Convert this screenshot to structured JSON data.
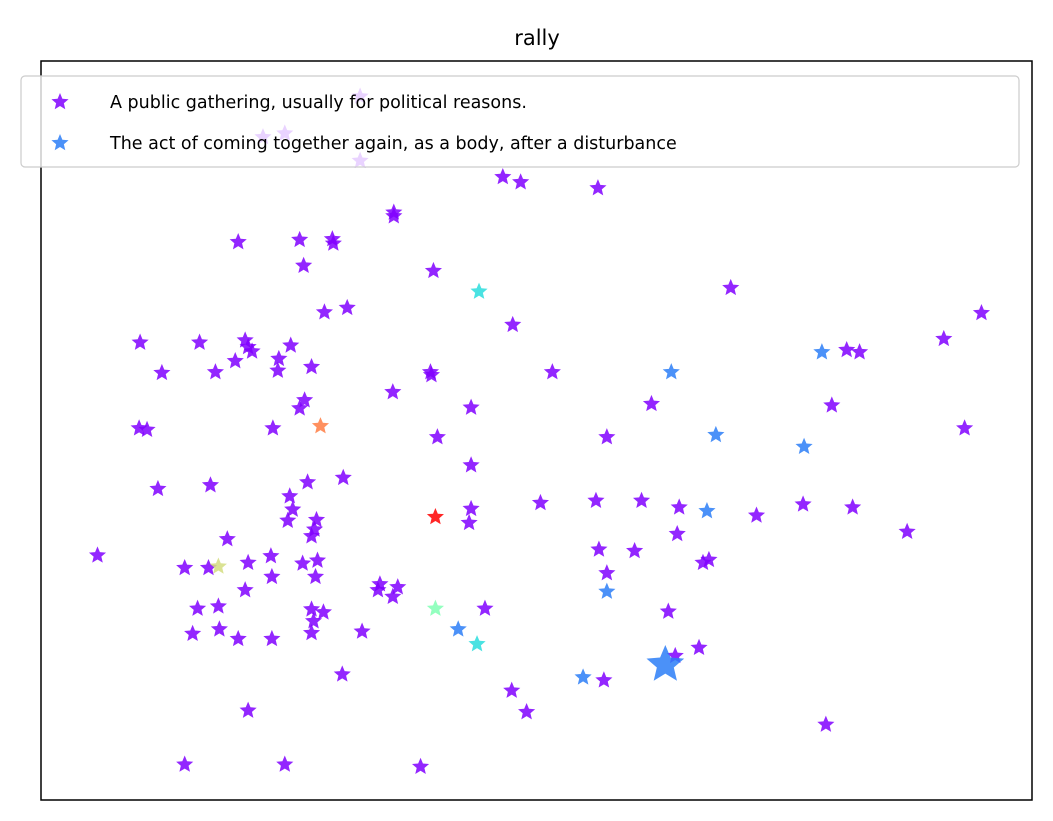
{
  "chart_data": {
    "type": "scatter",
    "title": "rally",
    "xlabel": "",
    "ylabel": "",
    "xlim": [
      0,
      100
    ],
    "ylim": [
      0,
      100
    ],
    "grid": false,
    "ticks": false,
    "marker": "star",
    "legend": {
      "placement": "top",
      "entries": [
        {
          "label": "A public gathering, usually for political reasons.",
          "color": "#8000ff"
        },
        {
          "label": "The act of coming together again, as a body, after a disturbance",
          "color": "#2c7ef7"
        }
      ]
    },
    "series": [
      {
        "name": "A public gathering, usually for political reasons.",
        "color": "#8000ff",
        "points": [
          [
            32.2,
            95.2
          ],
          [
            32.2,
            86.5
          ],
          [
            24.6,
            90.2
          ],
          [
            22.4,
            89.7
          ],
          [
            46.6,
            84.3
          ],
          [
            48.4,
            83.6
          ],
          [
            56.2,
            82.8
          ],
          [
            35.6,
            79.0
          ],
          [
            35.6,
            79.5
          ],
          [
            19.9,
            75.5
          ],
          [
            26.1,
            75.8
          ],
          [
            29.4,
            75.9
          ],
          [
            29.5,
            75.3
          ],
          [
            26.5,
            72.3
          ],
          [
            39.6,
            71.6
          ],
          [
            69.6,
            69.3
          ],
          [
            30.9,
            66.6
          ],
          [
            28.6,
            66.0
          ],
          [
            47.6,
            64.3
          ],
          [
            94.9,
            65.9
          ],
          [
            10.0,
            61.9
          ],
          [
            16.0,
            61.9
          ],
          [
            20.6,
            62.2
          ],
          [
            20.9,
            61.3
          ],
          [
            21.3,
            60.7
          ],
          [
            25.2,
            61.5
          ],
          [
            12.2,
            57.8
          ],
          [
            17.6,
            57.9
          ],
          [
            19.6,
            59.4
          ],
          [
            24.0,
            59.7
          ],
          [
            23.9,
            58.1
          ],
          [
            27.3,
            58.6
          ],
          [
            39.3,
            57.9
          ],
          [
            39.4,
            57.5
          ],
          [
            51.6,
            57.9
          ],
          [
            91.1,
            62.4
          ],
          [
            81.3,
            60.9
          ],
          [
            82.6,
            60.6
          ],
          [
            9.9,
            50.3
          ],
          [
            10.7,
            50.1
          ],
          [
            23.4,
            50.3
          ],
          [
            26.1,
            53.0
          ],
          [
            26.6,
            54.1
          ],
          [
            35.5,
            55.2
          ],
          [
            43.4,
            53.1
          ],
          [
            40.0,
            49.1
          ],
          [
            57.1,
            49.1
          ],
          [
            61.6,
            53.6
          ],
          [
            79.8,
            53.4
          ],
          [
            93.2,
            50.3
          ],
          [
            11.8,
            42.1
          ],
          [
            17.1,
            42.6
          ],
          [
            26.9,
            43.0
          ],
          [
            30.5,
            43.6
          ],
          [
            43.4,
            45.3
          ],
          [
            25.1,
            41.1
          ],
          [
            25.4,
            39.3
          ],
          [
            24.9,
            37.8
          ],
          [
            27.8,
            37.9
          ],
          [
            27.6,
            36.6
          ],
          [
            27.3,
            35.7
          ],
          [
            43.4,
            39.4
          ],
          [
            43.2,
            37.5
          ],
          [
            50.4,
            40.2
          ],
          [
            56.0,
            40.5
          ],
          [
            60.6,
            40.5
          ],
          [
            64.4,
            39.6
          ],
          [
            72.2,
            38.5
          ],
          [
            76.9,
            40.0
          ],
          [
            81.9,
            39.6
          ],
          [
            87.4,
            36.3
          ],
          [
            64.2,
            36.0
          ],
          [
            59.9,
            33.7
          ],
          [
            5.7,
            33.1
          ],
          [
            18.8,
            35.3
          ],
          [
            20.9,
            32.1
          ],
          [
            23.2,
            33.0
          ],
          [
            26.4,
            32.0
          ],
          [
            27.9,
            32.4
          ],
          [
            23.3,
            30.2
          ],
          [
            27.7,
            30.2
          ],
          [
            14.5,
            31.4
          ],
          [
            16.9,
            31.4
          ],
          [
            34.2,
            29.2
          ],
          [
            56.3,
            33.9
          ],
          [
            67.4,
            32.5
          ],
          [
            66.8,
            32.1
          ],
          [
            57.1,
            30.7
          ],
          [
            20.6,
            28.4
          ],
          [
            34.0,
            28.4
          ],
          [
            35.5,
            27.5
          ],
          [
            36.0,
            28.8
          ],
          [
            15.8,
            25.9
          ],
          [
            17.9,
            26.2
          ],
          [
            27.3,
            25.8
          ],
          [
            28.5,
            25.4
          ],
          [
            27.5,
            24.2
          ],
          [
            44.8,
            25.9
          ],
          [
            63.3,
            25.5
          ],
          [
            15.3,
            22.5
          ],
          [
            18.0,
            23.1
          ],
          [
            19.9,
            21.8
          ],
          [
            23.3,
            21.8
          ],
          [
            27.3,
            22.6
          ],
          [
            32.4,
            22.8
          ],
          [
            30.4,
            17.0
          ],
          [
            47.5,
            14.8
          ],
          [
            49.0,
            11.9
          ],
          [
            56.8,
            16.2
          ],
          [
            64.0,
            19.5
          ],
          [
            66.4,
            20.6
          ],
          [
            79.2,
            10.2
          ],
          [
            14.5,
            4.8
          ],
          [
            24.6,
            4.8
          ],
          [
            38.3,
            4.5
          ],
          [
            20.9,
            12.1
          ]
        ],
        "sizes": [
          1,
          1,
          1,
          1,
          1,
          1,
          1,
          1,
          1,
          1,
          1,
          1,
          1,
          1,
          1,
          1,
          1,
          1,
          1,
          1,
          1,
          1,
          1,
          1,
          1,
          1,
          1,
          1,
          1,
          1,
          1,
          1,
          1,
          1,
          1,
          1,
          1,
          1,
          1,
          1,
          1,
          1,
          1,
          1,
          1,
          1,
          1,
          1,
          1,
          1,
          1,
          1,
          1,
          1,
          1,
          1,
          1,
          1,
          1,
          1,
          1,
          1,
          1,
          1,
          1,
          1,
          1,
          1,
          1,
          1,
          1,
          1,
          1,
          1,
          1,
          1,
          1,
          1,
          1,
          1,
          1,
          1,
          1,
          1,
          1,
          1,
          1,
          1,
          1,
          1,
          1,
          1,
          1,
          1,
          1,
          1,
          1,
          1,
          1,
          1,
          1,
          1,
          1,
          1,
          1,
          1,
          1,
          1,
          1,
          1,
          1,
          1,
          1,
          1,
          1,
          1,
          3
        ]
      },
      {
        "name": "The act of coming together again, as a body, after a disturbance",
        "color": "#2c7ef7",
        "points": [
          [
            63.6,
            57.9
          ],
          [
            78.8,
            60.6
          ],
          [
            68.1,
            49.4
          ],
          [
            77.0,
            47.8
          ],
          [
            67.2,
            39.1
          ],
          [
            57.1,
            28.2
          ],
          [
            42.1,
            23.1
          ],
          [
            54.7,
            16.6
          ],
          [
            63.0,
            18.3
          ]
        ],
        "sizes": [
          1,
          1,
          1,
          1,
          1,
          1,
          1,
          1,
          3
        ]
      }
    ],
    "extra_points": [
      {
        "x": 44.2,
        "y": 68.8,
        "color": "#2adddd"
      },
      {
        "x": 44.0,
        "y": 21.1,
        "color": "#2adddd"
      },
      {
        "x": 39.8,
        "y": 25.9,
        "color": "#80ffb4"
      },
      {
        "x": 28.2,
        "y": 50.6,
        "color": "#ff7c43"
      },
      {
        "x": 39.8,
        "y": 38.3,
        "color": "#ff0000"
      },
      {
        "x": 17.9,
        "y": 31.6,
        "color": "#d4dd80"
      }
    ]
  }
}
